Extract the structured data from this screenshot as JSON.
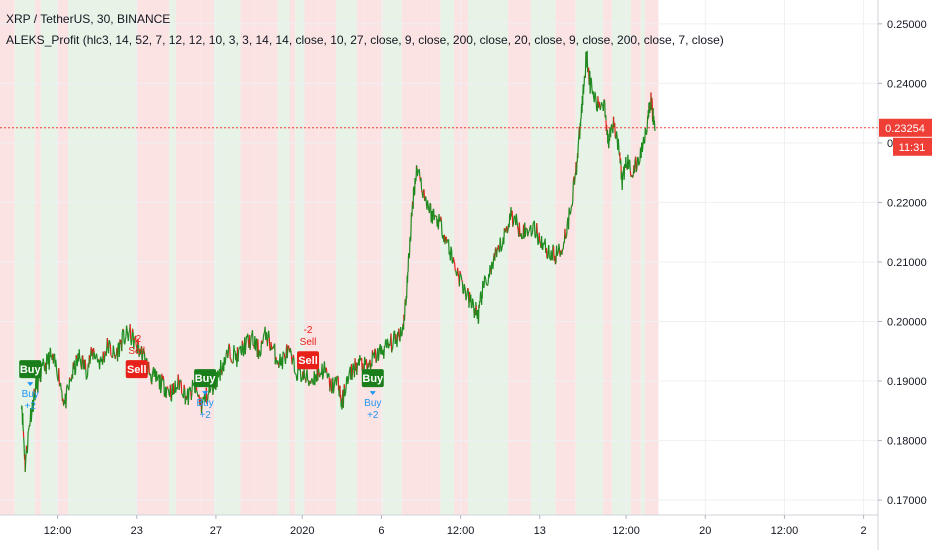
{
  "header": {
    "symbol_line": "XRP / TetherUS, 30, BINANCE",
    "indicator_line": "ALEKS_Profit (hlc3, 14, 52, 7, 12, 12, 10, 3, 3, 14, 14, close, 10, 27, close, 9, close, 200, close, 20, close, 9, close, 200, close, 7, close)"
  },
  "colors": {
    "up_line": "#1f8a1f",
    "down_line": "#e3201b",
    "bg_green": "#e6f3e6",
    "bg_red": "#fbe3e3",
    "axis_text": "#131722",
    "grid": "#eef0f3",
    "last_price": "#ef3e36",
    "buy_label": "#1a7f1a",
    "sell_label": "#e8201a",
    "buy_text": "#2196f3",
    "sell_text": "#e8201a"
  },
  "chart_data": {
    "type": "line",
    "title": "XRP / TetherUS, 30, BINANCE",
    "ylim": [
      0.1675,
      0.254
    ],
    "y_ticks": [
      "0.25000",
      "0.24000",
      "0.23000",
      "0.22000",
      "0.21000",
      "0.20000",
      "0.19000",
      "0.18000",
      "0.17000"
    ],
    "y_tick_values": [
      0.25,
      0.24,
      0.23,
      0.22,
      0.21,
      0.2,
      0.19,
      0.18,
      0.17
    ],
    "x_ticks": [
      {
        "label": "12:00",
        "t": 0.05
      },
      {
        "label": "23",
        "t": 0.16
      },
      {
        "label": "27",
        "t": 0.27
      },
      {
        "label": "2020",
        "t": 0.39
      },
      {
        "label": "6",
        "t": 0.5
      },
      {
        "label": "12:00",
        "t": 0.61
      },
      {
        "label": "13",
        "t": 0.72
      },
      {
        "label": "12:00",
        "t": 0.84
      },
      {
        "label": "20",
        "t": 0.95
      },
      {
        "label": "12:00",
        "t": 1.06
      },
      {
        "label": "2",
        "t": 1.17
      }
    ],
    "x_range": [
      -0.03,
      1.19
    ],
    "last_price": 0.23254,
    "last_price_label": "0.23254",
    "countdown_label": "11:31",
    "series": [
      {
        "points": [
          [
            0.0,
            0.187
          ],
          [
            0.005,
            0.176
          ],
          [
            0.012,
            0.184
          ],
          [
            0.02,
            0.189
          ],
          [
            0.03,
            0.192
          ],
          [
            0.04,
            0.194
          ],
          [
            0.05,
            0.192
          ],
          [
            0.06,
            0.186
          ],
          [
            0.07,
            0.191
          ],
          [
            0.08,
            0.194
          ],
          [
            0.09,
            0.192
          ],
          [
            0.1,
            0.195
          ],
          [
            0.11,
            0.193
          ],
          [
            0.12,
            0.196
          ],
          [
            0.13,
            0.194
          ],
          [
            0.14,
            0.197
          ],
          [
            0.15,
            0.198
          ],
          [
            0.16,
            0.196
          ],
          [
            0.17,
            0.194
          ],
          [
            0.18,
            0.191
          ],
          [
            0.19,
            0.19
          ],
          [
            0.2,
            0.189
          ],
          [
            0.21,
            0.188
          ],
          [
            0.22,
            0.19
          ],
          [
            0.23,
            0.187
          ],
          [
            0.24,
            0.189
          ],
          [
            0.25,
            0.186
          ],
          [
            0.26,
            0.188
          ],
          [
            0.27,
            0.19
          ],
          [
            0.28,
            0.193
          ],
          [
            0.29,
            0.195
          ],
          [
            0.3,
            0.194
          ],
          [
            0.31,
            0.196
          ],
          [
            0.32,
            0.197
          ],
          [
            0.33,
            0.195
          ],
          [
            0.34,
            0.198
          ],
          [
            0.35,
            0.195
          ],
          [
            0.36,
            0.193
          ],
          [
            0.37,
            0.195
          ],
          [
            0.38,
            0.192
          ],
          [
            0.39,
            0.191
          ],
          [
            0.4,
            0.19
          ],
          [
            0.41,
            0.191
          ],
          [
            0.42,
            0.192
          ],
          [
            0.43,
            0.189
          ],
          [
            0.44,
            0.19
          ],
          [
            0.445,
            0.186
          ],
          [
            0.45,
            0.189
          ],
          [
            0.46,
            0.192
          ],
          [
            0.47,
            0.193
          ],
          [
            0.48,
            0.192
          ],
          [
            0.49,
            0.194
          ],
          [
            0.5,
            0.195
          ],
          [
            0.51,
            0.196
          ],
          [
            0.52,
            0.197
          ],
          [
            0.53,
            0.199
          ],
          [
            0.535,
            0.205
          ],
          [
            0.54,
            0.214
          ],
          [
            0.545,
            0.222
          ],
          [
            0.55,
            0.226
          ],
          [
            0.56,
            0.221
          ],
          [
            0.57,
            0.218
          ],
          [
            0.58,
            0.217
          ],
          [
            0.59,
            0.214
          ],
          [
            0.6,
            0.21
          ],
          [
            0.61,
            0.207
          ],
          [
            0.62,
            0.204
          ],
          [
            0.63,
            0.202
          ],
          [
            0.635,
            0.201
          ],
          [
            0.64,
            0.205
          ],
          [
            0.65,
            0.208
          ],
          [
            0.66,
            0.211
          ],
          [
            0.67,
            0.214
          ],
          [
            0.68,
            0.218
          ],
          [
            0.69,
            0.216
          ],
          [
            0.7,
            0.215
          ],
          [
            0.71,
            0.216
          ],
          [
            0.72,
            0.214
          ],
          [
            0.73,
            0.212
          ],
          [
            0.74,
            0.211
          ],
          [
            0.75,
            0.212
          ],
          [
            0.76,
            0.217
          ],
          [
            0.77,
            0.225
          ],
          [
            0.775,
            0.231
          ],
          [
            0.78,
            0.238
          ],
          [
            0.785,
            0.245
          ],
          [
            0.79,
            0.24
          ],
          [
            0.8,
            0.236
          ],
          [
            0.81,
            0.237
          ],
          [
            0.815,
            0.23
          ],
          [
            0.82,
            0.234
          ],
          [
            0.83,
            0.229
          ],
          [
            0.835,
            0.223
          ],
          [
            0.84,
            0.227
          ],
          [
            0.85,
            0.225
          ],
          [
            0.86,
            0.228
          ],
          [
            0.87,
            0.234
          ],
          [
            0.875,
            0.237
          ],
          [
            0.88,
            0.232
          ]
        ]
      }
    ],
    "signals": [
      {
        "type": "Buy",
        "t": 0.012,
        "price": 0.192,
        "amount": "+2"
      },
      {
        "type": "Sell",
        "t": 0.16,
        "price": 0.192,
        "amount": "-2"
      },
      {
        "type": "Buy",
        "t": 0.255,
        "price": 0.1905,
        "amount": "+2"
      },
      {
        "type": "Sell",
        "t": 0.398,
        "price": 0.1935,
        "amount": "-2"
      },
      {
        "type": "Buy",
        "t": 0.488,
        "price": 0.1905,
        "amount": "+2"
      }
    ]
  }
}
